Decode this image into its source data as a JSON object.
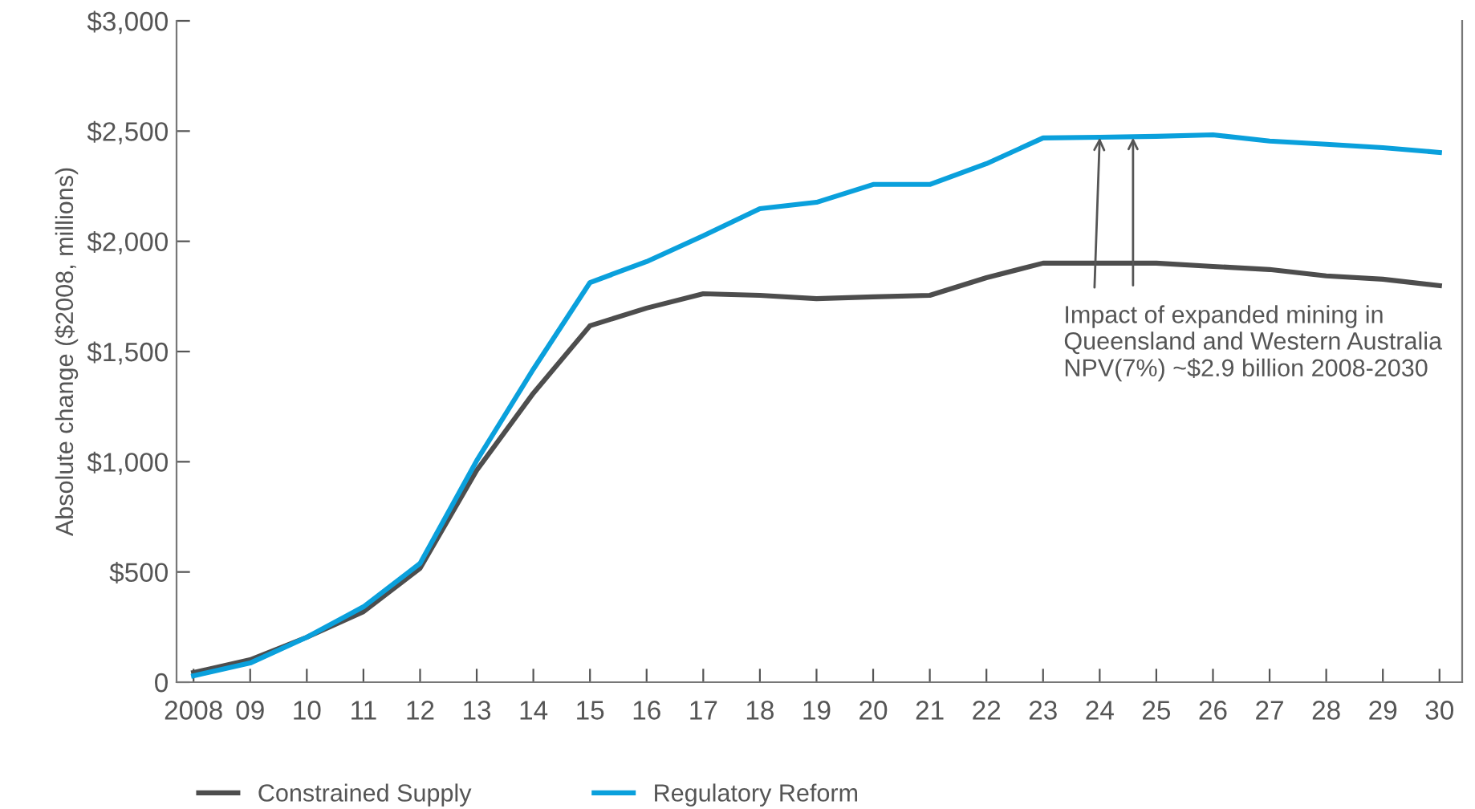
{
  "chart_data": {
    "type": "line",
    "ylabel": "Absolute change ($2008, millions)",
    "categories": [
      "2008",
      "09",
      "10",
      "11",
      "12",
      "13",
      "14",
      "15",
      "16",
      "17",
      "18",
      "19",
      "20",
      "21",
      "22",
      "23",
      "24",
      "25",
      "26",
      "27",
      "28",
      "29",
      "30"
    ],
    "series": [
      {
        "name": "Constrained Supply",
        "color": "#4d4d4d",
        "values": [
          44,
          102,
          204,
          320,
          517,
          961,
          1311,
          1617,
          1697,
          1762,
          1755,
          1740,
          1748,
          1755,
          1835,
          1901,
          1901,
          1901,
          1886,
          1872,
          1843,
          1828,
          1799
        ]
      },
      {
        "name": "Regulatory Reform",
        "color": "#0aa0dc",
        "values": [
          29,
          87,
          204,
          342,
          539,
          1005,
          1420,
          1813,
          1908,
          2025,
          2148,
          2177,
          2258,
          2258,
          2352,
          2469,
          2472,
          2476,
          2483,
          2455,
          2440,
          2425,
          2403
        ]
      }
    ],
    "ylim": [
      0,
      3000
    ],
    "yticks": [
      0,
      {
        "value": 500,
        "label": "$500"
      },
      {
        "value": 1000,
        "label": "$1,000"
      },
      {
        "value": 1500,
        "label": "$1,500"
      },
      {
        "value": 2000,
        "label": "$2,000"
      },
      {
        "value": 2500,
        "label": "$2,500"
      },
      {
        "value": 3000,
        "label": "$3,000"
      }
    ],
    "grid": false,
    "legend": "bottom left",
    "marker": "none",
    "line_style": "solid",
    "annotations": [
      {
        "text": "Impact of expanded mining in Queensland and Western Australia NPV(7%) ~$2.9 billion 2008-2030",
        "x": "24",
        "y": 2470
      }
    ]
  }
}
